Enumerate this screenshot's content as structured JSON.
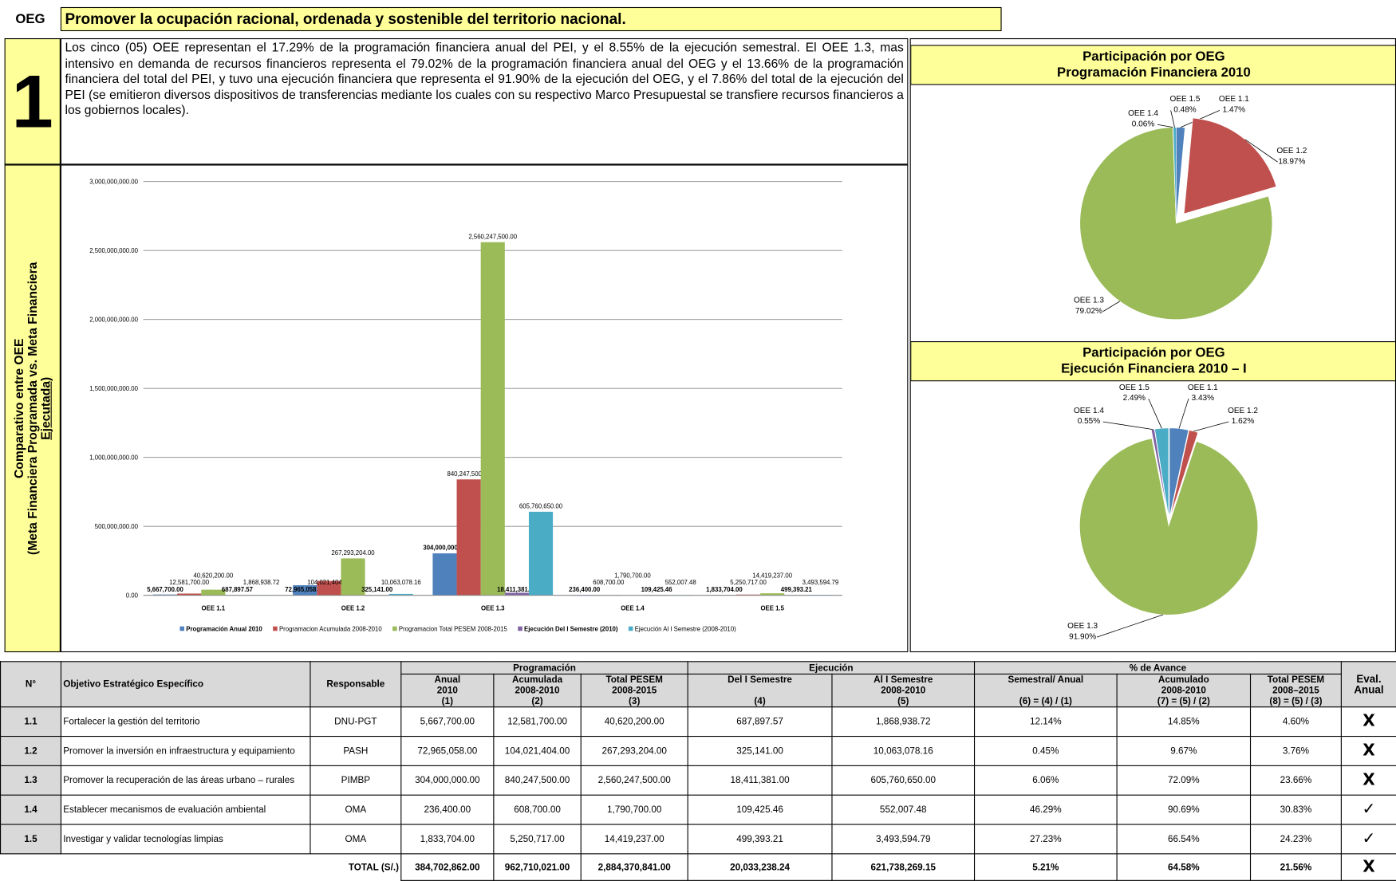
{
  "header": {
    "label": "OEG",
    "title": "Promover la ocupación racional, ordenada y sostenible del territorio nacional."
  },
  "oeg_number": "1",
  "side_label": [
    "Comparativo entre OEE",
    "(Meta Financiera Programada vs. Meta Financiera",
    "Ejecutada)"
  ],
  "paragraph": "Los cinco (05) OEE representan el 17.29% de la programación financiera anual del PEI, y el 8.55% de la ejecución semestral. El OEE 1.3, mas intensivo en demanda de recursos financieros representa el 79.02% de la programación financiera anual del OEG y el 13.66% de la programación financiera del total del PEI, y tuvo una ejecución financiera que representa el 91.90% de la ejecución del OEG, y el 7.86% del total de la ejecución del PEI (se emitieron diversos dispositivos de transferencias mediante los cuales con su respectivo Marco Presupuestal se transfiere recursos financieros a los gobiernos locales).",
  "chart_data": [
    {
      "type": "bar",
      "categories": [
        "OEE 1.1",
        "OEE 1.2",
        "OEE 1.3",
        "OEE 1.4",
        "OEE 1.5"
      ],
      "ylim": [
        0,
        3000000000
      ],
      "yticks": [
        {
          "value": 0,
          "label": "0.00"
        },
        {
          "value": 500000000,
          "label": "500,000,000.00"
        },
        {
          "value": 1000000000,
          "label": "1,000,000,000.00"
        },
        {
          "value": 1500000000,
          "label": "1,500,000,000.00"
        },
        {
          "value": 2000000000,
          "label": "2,000,000,000.00"
        },
        {
          "value": 2500000000,
          "label": "2,500,000,000.00"
        },
        {
          "value": 3000000000,
          "label": "3,000,000,000.00"
        }
      ],
      "grid": true,
      "legend": "bottom",
      "series": [
        {
          "name": "Programación Anual 2010",
          "color": "#4f81bd",
          "values": [
            5667700,
            72965058,
            304000000,
            236400,
            1833704
          ],
          "value_labels": [
            "5,667,700.00",
            "72,965,058.00",
            "304,000,000.00",
            "236,400.00",
            "1,833,704.00"
          ]
        },
        {
          "name": "Programacion Acumulada 2008-2010",
          "color": "#c0504d",
          "values": [
            12581700,
            104021404,
            840247500,
            608700,
            5250717
          ],
          "value_labels": [
            "12,581,700.00",
            "104,021,404.00",
            "840,247,500.00",
            "608,700.00",
            "5,250,717.00"
          ]
        },
        {
          "name": "Programacion Total PESEM 2008-2015",
          "color": "#9bbb59",
          "values": [
            40620200,
            267293204,
            2560247500,
            1790700,
            14419237
          ],
          "value_labels": [
            "40,620,200.00",
            "267,293,204.00",
            "2,560,247,500.00",
            "1,790,700.00",
            "14,419,237.00"
          ]
        },
        {
          "name": "Ejecución Del I Semestre (2010)",
          "color": "#8064a2",
          "values": [
            687897.57,
            325141,
            18411381,
            109425.46,
            499393.21
          ],
          "value_labels": [
            "687,897.57",
            "325,141.00",
            "18,411,381.00",
            "109,425.46",
            "499,393.21"
          ]
        },
        {
          "name": "Ejecución Al I Semestre (2008-2010)",
          "color": "#4bacc6",
          "values": [
            1868938.72,
            10063078.16,
            605760650,
            552007.48,
            3493594.79
          ],
          "value_labels": [
            "1,868,938.72",
            "10,063,078.16",
            "605,760,650.00",
            "552,007.48",
            "3,493,594.79"
          ]
        }
      ]
    },
    {
      "type": "pie",
      "title": "Participación por OEG",
      "subtitle": "Programación Financiera 2010",
      "categories": [
        "OEE 1.1",
        "OEE 1.2",
        "OEE 1.3",
        "OEE 1.4",
        "OEE 1.5"
      ],
      "values": [
        1.47,
        18.97,
        79.02,
        0.06,
        0.48
      ],
      "value_labels": [
        "1.47%",
        "18.97%",
        "79.02%",
        "0.06%",
        "0.48%"
      ],
      "colors": [
        "#4f81bd",
        "#c0504d",
        "#9bbb59",
        "#8064a2",
        "#4bacc6"
      ]
    },
    {
      "type": "pie",
      "title": "Participación por OEG",
      "subtitle": "Ejecución Financiera 2010 – I",
      "categories": [
        "OEE 1.1",
        "OEE 1.2",
        "OEE 1.3",
        "OEE 1.4",
        "OEE 1.5"
      ],
      "values": [
        3.43,
        1.62,
        91.9,
        0.55,
        2.49
      ],
      "value_labels": [
        "3.43%",
        "1.62%",
        "91.90%",
        "0.55%",
        "2.49%"
      ],
      "colors": [
        "#4f81bd",
        "#c0504d",
        "#9bbb59",
        "#8064a2",
        "#4bacc6"
      ]
    }
  ],
  "table": {
    "head": {
      "n": "N°",
      "objetivo": "Objetivo Estratégico Específico",
      "responsable": "Responsable",
      "programacion": "Programación",
      "ejecucion": "Ejecución",
      "avance": "% de Avance",
      "eval": "Eval. Anual",
      "sub": [
        "Anual\n2010\n(1)",
        "Acumulada\n2008-2010\n(2)",
        "Total PESEM\n2008-2015\n(3)",
        "Del I Semestre\n\n(4)",
        "Al I Semestre\n2008-2010\n(5)",
        "Semestral/ Anual\n\n(6) = (4) / (1)",
        "Acumulado\n2008-2010\n(7) = (5) / (2)",
        "Total PESEM\n2008–2015\n(8) = (5) / (3)"
      ]
    },
    "rows": [
      [
        "1.1",
        "Fortalecer la gestión del territorio",
        "DNU-PGT",
        "5,667,700.00",
        "12,581,700.00",
        "40,620,200.00",
        "687,897.57",
        "1,868,938.72",
        "12.14%",
        "14.85%",
        "4.60%",
        "X"
      ],
      [
        "1.2",
        "Promover la inversión en infraestructura y equipamiento",
        "PASH",
        "72,965,058.00",
        "104,021,404.00",
        "267,293,204.00",
        "325,141.00",
        "10,063,078.16",
        "0.45%",
        "9.67%",
        "3.76%",
        "X"
      ],
      [
        "1.3",
        "Promover la recuperación de las áreas urbano – rurales",
        "PIMBP",
        "304,000,000.00",
        "840,247,500.00",
        "2,560,247,500.00",
        "18,411,381.00",
        "605,760,650.00",
        "6.06%",
        "72.09%",
        "23.66%",
        "X"
      ],
      [
        "1.4",
        "Establecer mecanismos de evaluación ambiental",
        "OMA",
        "236,400.00",
        "608,700.00",
        "1,790,700.00",
        "109,425.46",
        "552,007.48",
        "46.29%",
        "90.69%",
        "30.83%",
        "✓"
      ],
      [
        "1.5",
        "Investigar y validar tecnologías limpias",
        "OMA",
        "1,833,704.00",
        "5,250,717.00",
        "14,419,237.00",
        "499,393.21",
        "3,493,594.79",
        "27.23%",
        "66.54%",
        "24.23%",
        "✓"
      ]
    ],
    "total": [
      "TOTAL (S/.)",
      "384,702,862.00",
      "962,710,021.00",
      "2,884,370,841.00",
      "20,033,238.24",
      "621,738,269.15",
      "5.21%",
      "64.58%",
      "21.56%",
      "X"
    ]
  }
}
